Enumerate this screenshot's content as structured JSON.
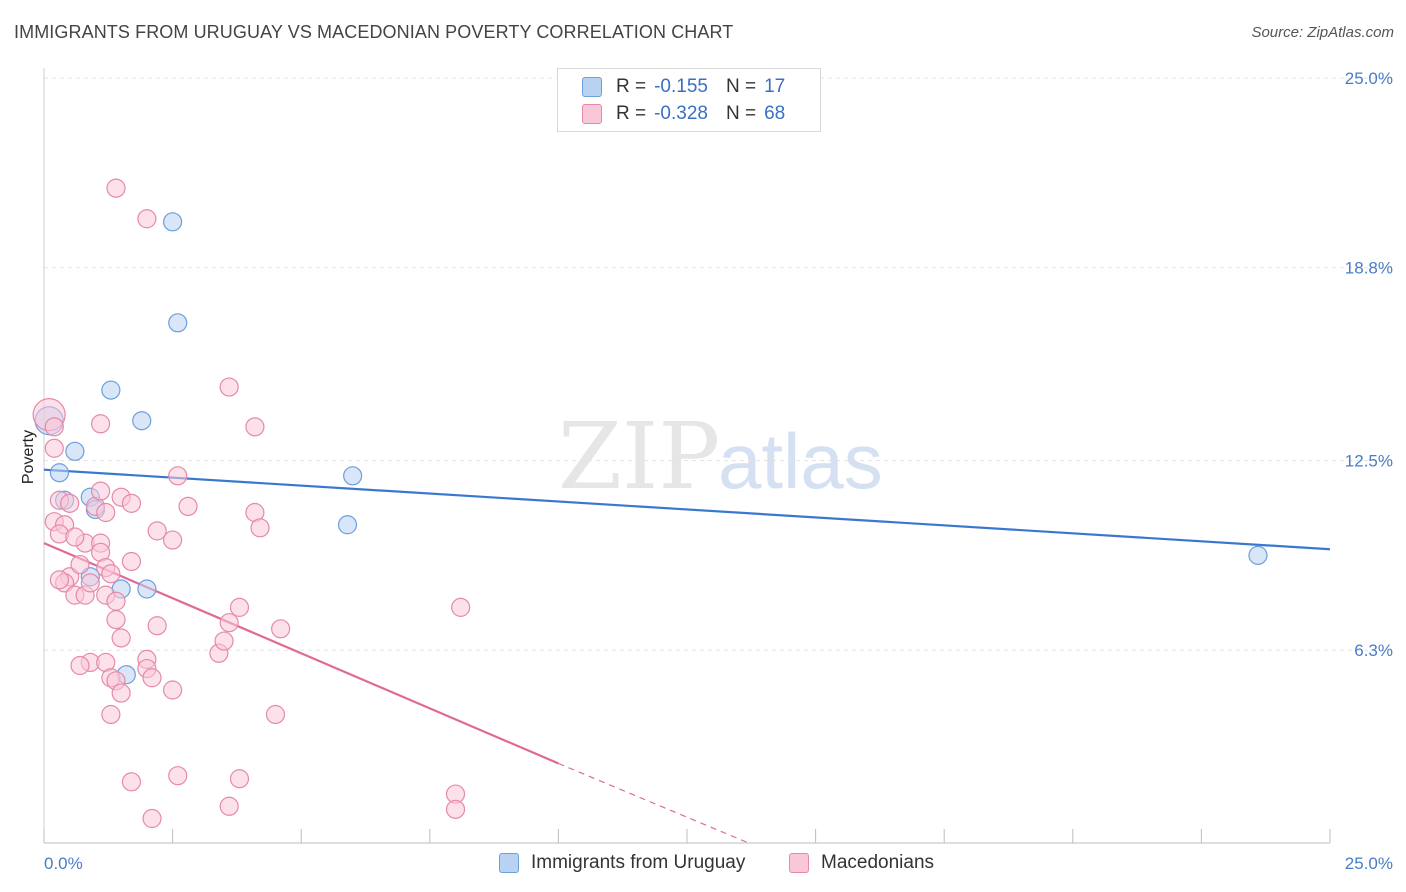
{
  "title": "IMMIGRANTS FROM URUGUAY VS MACEDONIAN POVERTY CORRELATION CHART",
  "source": "Source: ZipAtlas.com",
  "watermark": {
    "zip": "ZIP",
    "atlas": "atlas"
  },
  "legend": {
    "rows": [
      {
        "r_label": "R =",
        "r_value": "-0.155",
        "n_label": "N =",
        "n_value": "17",
        "color": "#6c9fdc"
      },
      {
        "r_label": "R =",
        "r_value": "-0.328",
        "n_label": "N =",
        "n_value": "68",
        "color": "#e58aa9"
      }
    ]
  },
  "bottom_legend": {
    "series1": "Immigrants from Uruguay",
    "series2": "Macedonians"
  },
  "colors": {
    "blue_fill": "#b9d2f2",
    "blue_stroke": "#6c9fdc",
    "blue_line": "#3a78d0",
    "pink_fill": "#f9c8d8",
    "pink_stroke": "#e58aa9",
    "pink_line": "#e06a96",
    "axis_text": "#4a7cc7",
    "grid": "#e3e3e3"
  },
  "chart_data": {
    "type": "scatter",
    "title": "IMMIGRANTS FROM URUGUAY VS MACEDONIAN POVERTY CORRELATION CHART",
    "xlabel": "",
    "ylabel": "Poverty",
    "xlim": [
      0,
      25
    ],
    "ylim": [
      0,
      25
    ],
    "x_tick_labels": [
      "0.0%",
      "25.0%"
    ],
    "y_ticks": [
      6.3,
      12.5,
      18.8,
      25.0
    ],
    "y_tick_labels": [
      "6.3%",
      "12.5%",
      "18.8%",
      "25.0%"
    ],
    "grid": true,
    "series": [
      {
        "name": "Immigrants from Uruguay",
        "color": "#6c9fdc",
        "r": -0.155,
        "n": 17,
        "points": [
          [
            0.1,
            13.8,
            14
          ],
          [
            0.3,
            12.1,
            9
          ],
          [
            0.6,
            12.8,
            9
          ],
          [
            0.4,
            11.2,
            9
          ],
          [
            0.9,
            11.3,
            9
          ],
          [
            1.0,
            10.9,
            9
          ],
          [
            1.3,
            14.8,
            9
          ],
          [
            1.9,
            13.8,
            9
          ],
          [
            2.5,
            20.3,
            9
          ],
          [
            2.6,
            17.0,
            9
          ],
          [
            0.9,
            8.7,
            9
          ],
          [
            1.5,
            8.3,
            9
          ],
          [
            2.0,
            8.3,
            9
          ],
          [
            1.6,
            5.5,
            9
          ],
          [
            6.0,
            12.0,
            9
          ],
          [
            5.9,
            10.4,
            9
          ],
          [
            23.6,
            9.4,
            9
          ]
        ],
        "trend": {
          "x": [
            0,
            25
          ],
          "y": [
            12.2,
            9.6
          ]
        }
      },
      {
        "name": "Macedonians",
        "color": "#e58aa9",
        "r": -0.328,
        "n": 68,
        "points": [
          [
            0.1,
            14.0,
            16
          ],
          [
            0.2,
            13.6,
            9
          ],
          [
            0.2,
            12.9,
            9
          ],
          [
            0.2,
            10.5,
            9
          ],
          [
            0.3,
            11.2,
            9
          ],
          [
            0.4,
            10.4,
            9
          ],
          [
            0.3,
            10.1,
            9
          ],
          [
            0.5,
            8.7,
            9
          ],
          [
            0.4,
            8.5,
            9
          ],
          [
            0.6,
            8.1,
            9
          ],
          [
            0.8,
            9.8,
            9
          ],
          [
            0.7,
            9.1,
            9
          ],
          [
            0.8,
            8.1,
            9
          ],
          [
            0.9,
            5.9,
            9
          ],
          [
            0.7,
            5.8,
            9
          ],
          [
            0.9,
            8.5,
            9
          ],
          [
            1.0,
            11.0,
            9
          ],
          [
            1.1,
            11.5,
            9
          ],
          [
            1.2,
            10.8,
            9
          ],
          [
            1.1,
            9.8,
            9
          ],
          [
            1.1,
            9.5,
            9
          ],
          [
            1.2,
            9.0,
            9
          ],
          [
            1.3,
            8.8,
            9
          ],
          [
            1.2,
            8.1,
            9
          ],
          [
            1.4,
            7.9,
            9
          ],
          [
            1.4,
            7.3,
            9
          ],
          [
            1.5,
            6.7,
            9
          ],
          [
            1.2,
            5.9,
            9
          ],
          [
            1.3,
            5.4,
            9
          ],
          [
            1.4,
            5.3,
            9
          ],
          [
            1.5,
            4.9,
            9
          ],
          [
            1.3,
            4.2,
            9
          ],
          [
            1.4,
            21.4,
            9
          ],
          [
            2.0,
            20.4,
            9
          ],
          [
            1.1,
            13.7,
            9
          ],
          [
            1.5,
            11.3,
            9
          ],
          [
            1.7,
            11.1,
            9
          ],
          [
            1.7,
            9.2,
            9
          ],
          [
            2.2,
            10.2,
            9
          ],
          [
            2.2,
            7.1,
            9
          ],
          [
            2.0,
            6.0,
            9
          ],
          [
            2.0,
            5.7,
            9
          ],
          [
            2.1,
            5.4,
            9
          ],
          [
            2.5,
            9.9,
            9
          ],
          [
            2.6,
            12.0,
            9
          ],
          [
            2.8,
            11.0,
            9
          ],
          [
            2.5,
            5.0,
            9
          ],
          [
            1.7,
            2.0,
            9
          ],
          [
            2.6,
            2.2,
            9
          ],
          [
            2.1,
            0.8,
            9
          ],
          [
            3.4,
            6.2,
            9
          ],
          [
            3.5,
            6.6,
            9
          ],
          [
            3.6,
            7.2,
            9
          ],
          [
            3.8,
            7.7,
            9
          ],
          [
            3.6,
            14.9,
            9
          ],
          [
            4.1,
            13.6,
            9
          ],
          [
            4.1,
            10.8,
            9
          ],
          [
            4.2,
            10.3,
            9
          ],
          [
            4.6,
            7.0,
            9
          ],
          [
            4.5,
            4.2,
            9
          ],
          [
            3.6,
            1.2,
            9
          ],
          [
            3.8,
            2.1,
            9
          ],
          [
            8.1,
            7.7,
            9
          ],
          [
            8.0,
            1.6,
            9
          ],
          [
            8.0,
            1.1,
            9
          ],
          [
            0.3,
            8.6,
            9
          ],
          [
            0.5,
            11.1,
            9
          ],
          [
            0.6,
            10.0,
            9
          ]
        ],
        "trend": {
          "x": [
            0,
            10.0
          ],
          "y": [
            9.8,
            2.6
          ]
        },
        "trend_dashed": {
          "x": [
            10.0,
            13.7
          ],
          "y": [
            2.6,
            0.0
          ]
        }
      }
    ]
  }
}
